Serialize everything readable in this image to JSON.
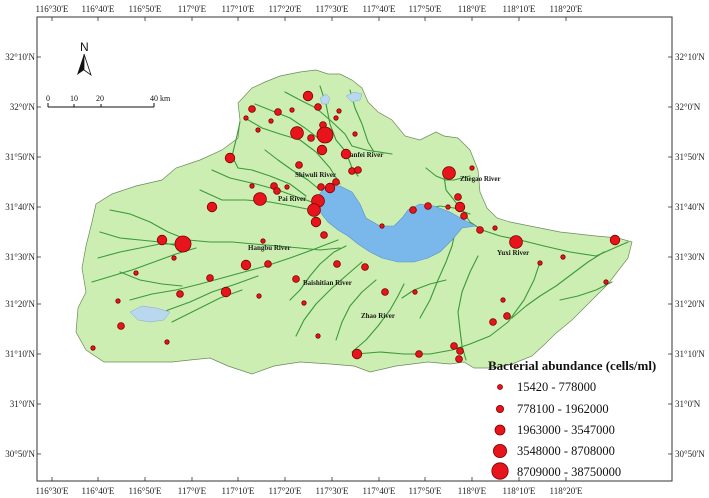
{
  "colors": {
    "land": "#cdeeb2",
    "land_border": "#6a8a5a",
    "river": "#3a9a3a",
    "lake": "#7ab8ec",
    "site_fill": "#e8141c",
    "site_stroke": "#7a0000"
  },
  "axes": {
    "lon_ticks": [
      "116°30'E",
      "116°40'E",
      "116°50'E",
      "117°0'E",
      "117°10'E",
      "117°20'E",
      "117°30'E",
      "117°40'E",
      "117°50'E",
      "118°0'E",
      "118°10'E",
      "118°20'E"
    ],
    "lat_ticks": [
      "32°10'N",
      "32°0'N",
      "31°50'N",
      "31°40'N",
      "31°30'N",
      "31°20'N",
      "31°10'N",
      "31°0'N",
      "30°50'N"
    ]
  },
  "north_arrow": {
    "label": "N",
    "icon": "north-arrow-icon"
  },
  "scale_bar": {
    "labels": [
      "0",
      "10",
      "20",
      "40 km"
    ]
  },
  "rivers": [
    "Nanfei River",
    "Shiwuli River",
    "Zhegao River",
    "Pai River",
    "Hangbu River",
    "Yuxi River",
    "Baishitian River",
    "Zhao River"
  ],
  "legend": {
    "title": "Bacterial abundance (cells/ml)",
    "classes": [
      {
        "label": "15420 - 778000"
      },
      {
        "label": "778100 - 1962000"
      },
      {
        "label": "1963000 - 3547000"
      },
      {
        "label": "3548000 - 8708000"
      },
      {
        "label": "8709000 - 38750000"
      }
    ]
  }
}
